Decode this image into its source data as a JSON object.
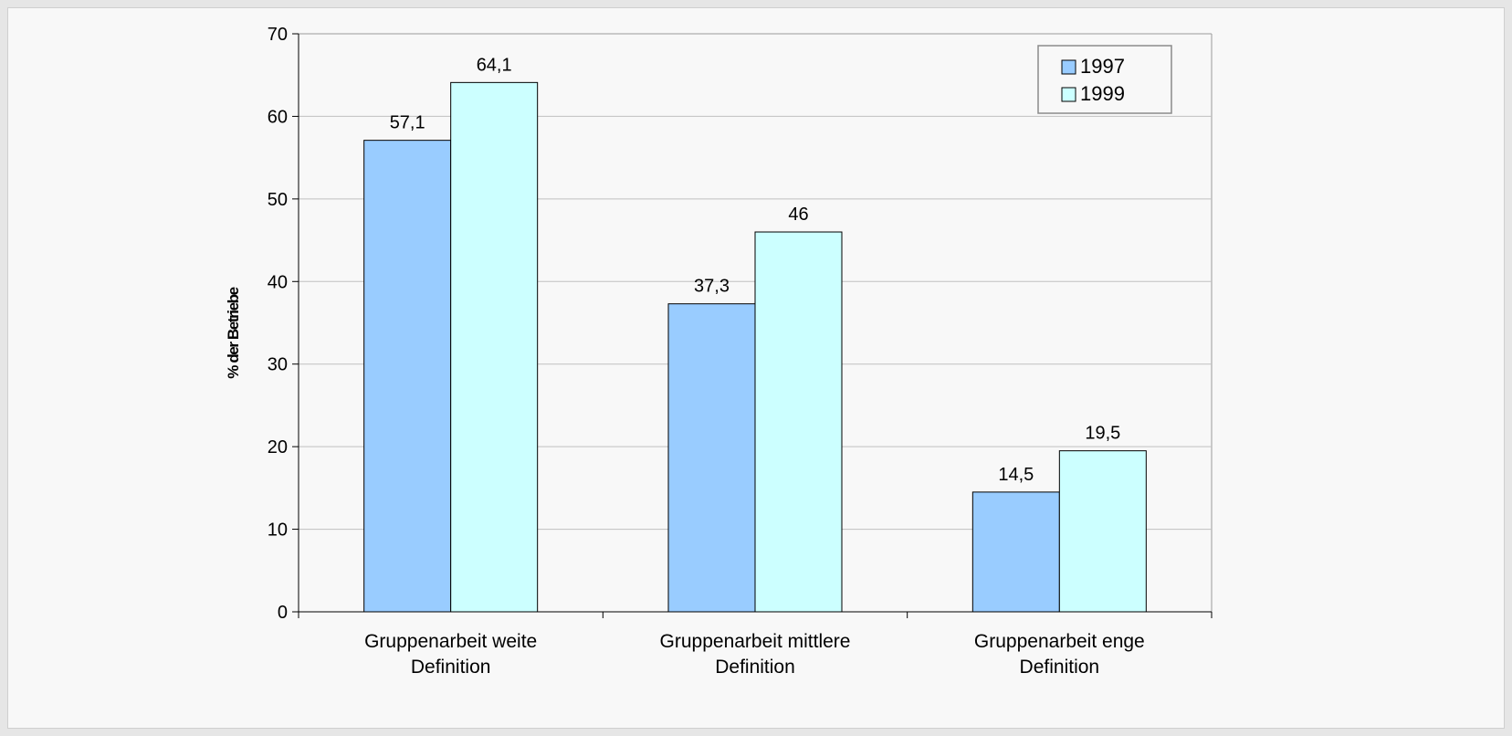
{
  "colors": {
    "1997": "#99ccff",
    "1999": "#ccffff",
    "axis": "#000000",
    "grid": "#c0c0c0"
  },
  "chart_data": {
    "type": "bar",
    "title": "",
    "xlabel": "",
    "ylabel": "% der Betriebe",
    "ylim": [
      0,
      70
    ],
    "yticks": [
      "0",
      "10",
      "20",
      "30",
      "40",
      "50",
      "60",
      "70"
    ],
    "categories": [
      [
        "Gruppenarbeit weite",
        "Definition"
      ],
      [
        "Gruppenarbeit mittlere",
        "Definition"
      ],
      [
        "Gruppenarbeit enge",
        "Definition"
      ]
    ],
    "series": [
      {
        "name": "1997",
        "values": [
          57.1,
          37.3,
          14.5
        ],
        "labels": [
          "57,1",
          "37,3",
          "14,5"
        ],
        "color": "#99ccff"
      },
      {
        "name": "1999",
        "values": [
          64.1,
          46,
          19.5
        ],
        "labels": [
          "64,1",
          "46",
          "19,5"
        ],
        "color": "#ccffff"
      }
    ],
    "grid": true,
    "legend": "top-right"
  }
}
